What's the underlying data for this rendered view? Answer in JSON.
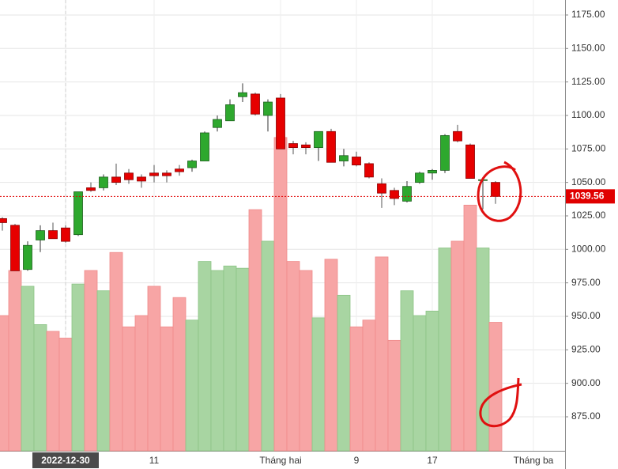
{
  "chart_data": {
    "type": "candlestick",
    "x": [
      0,
      1,
      2,
      3,
      4,
      5,
      6,
      7,
      8,
      9,
      10,
      11,
      12,
      13,
      14,
      15,
      16,
      17,
      18,
      19,
      20,
      21,
      22,
      23,
      24,
      25,
      26,
      27,
      28,
      29,
      30,
      31,
      32,
      33,
      34,
      35,
      36,
      37,
      38,
      39
    ],
    "open": [
      1023,
      1018,
      985,
      1007,
      1014,
      1016,
      1011,
      1046,
      1046,
      1054,
      1057,
      1054,
      1057,
      1057,
      1060,
      1061,
      1066,
      1091,
      1096,
      1114,
      1116,
      1100,
      1113,
      1079,
      1078,
      1076,
      1088,
      1066,
      1069,
      1064,
      1049,
      1044,
      1036,
      1050,
      1057,
      1059,
      1088,
      1078,
      1052,
      1050
    ],
    "high": [
      1024,
      1019,
      1006,
      1018,
      1020,
      1018,
      1043,
      1050,
      1056,
      1064,
      1060,
      1056,
      1063,
      1059,
      1063,
      1067,
      1088,
      1100,
      1112,
      1124,
      1117,
      1112,
      1116,
      1081,
      1080,
      1088,
      1090,
      1075,
      1073,
      1065,
      1053,
      1046,
      1051,
      1058,
      1060,
      1086,
      1093,
      1079,
      1053,
      1051
    ],
    "low": [
      1014,
      984,
      984,
      998,
      1008,
      1005,
      1010,
      1043,
      1044,
      1048,
      1049,
      1046,
      1050,
      1050,
      1055,
      1058,
      1066,
      1088,
      1096,
      1110,
      1100,
      1088,
      1075,
      1071,
      1071,
      1066,
      1065,
      1062,
      1062,
      1053,
      1031,
      1033,
      1035,
      1049,
      1052,
      1057,
      1080,
      1053,
      1030,
      1034
    ],
    "close": [
      1020,
      984,
      1003,
      1014,
      1008,
      1006,
      1043,
      1044,
      1054,
      1050,
      1052,
      1051,
      1055,
      1055,
      1058,
      1066,
      1087,
      1097,
      1108,
      1117,
      1101,
      1110,
      1075,
      1076,
      1076,
      1088,
      1065,
      1070,
      1063,
      1054,
      1042,
      1038,
      1047,
      1057,
      1059,
      1085,
      1081,
      1053,
      1052,
      1039.56
    ],
    "volume": [
      60,
      80,
      73,
      56,
      53,
      50,
      74,
      80,
      71,
      88,
      55,
      60,
      73,
      55,
      68,
      58,
      84,
      80,
      82,
      81,
      107,
      93,
      139,
      84,
      80,
      59,
      85,
      69,
      55,
      58,
      86,
      49,
      71,
      60,
      62,
      90,
      93,
      109,
      90,
      57
    ],
    "vlim": [
      0,
      200
    ],
    "xlim": [
      -0.1875,
      44.5
    ],
    "ylim": [
      849.6,
      1186.2
    ],
    "xticks": [
      {
        "value": 5,
        "label": "2022-12-30"
      },
      {
        "value": 12,
        "label": "11"
      },
      {
        "value": 22,
        "label": "Tháng hai"
      },
      {
        "value": 28,
        "label": "9"
      },
      {
        "value": 34,
        "label": "17"
      },
      {
        "value": 42,
        "label": "Tháng ba"
      }
    ],
    "highlight_xtick": 0,
    "yticks": [
      {
        "value": 875,
        "label": "875.00"
      },
      {
        "value": 900,
        "label": "900.00"
      },
      {
        "value": 925,
        "label": "925.00"
      },
      {
        "value": 950,
        "label": "950.00"
      },
      {
        "value": 975,
        "label": "975.00"
      },
      {
        "value": 1000,
        "label": "1000.00"
      },
      {
        "value": 1025,
        "label": "1025.00"
      },
      {
        "value": 1050,
        "label": "1050.00"
      },
      {
        "value": 1075,
        "label": "1075.00"
      },
      {
        "value": 1100,
        "label": "1100.00"
      },
      {
        "value": 1125,
        "label": "1125.00"
      },
      {
        "value": 1150,
        "label": "1150.00"
      },
      {
        "value": 1175,
        "label": "1175.00"
      }
    ],
    "last_price": 1039.56,
    "up_color": "#2ea82e",
    "down_color": "#e60000",
    "up_volume_color": "#a8d5a2",
    "down_volume_color": "#f7a5a5",
    "grid": true
  }
}
